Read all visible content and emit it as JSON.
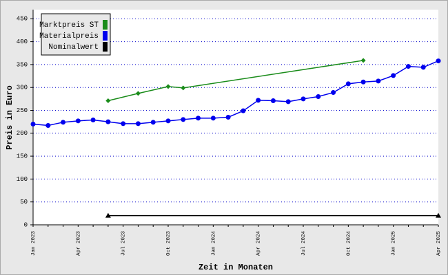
{
  "chart_data": {
    "type": "line",
    "y_label": "Preis in Euro",
    "x_label": "Zeit in Monaten",
    "x": [
      "Jan 2023",
      "Feb 2023",
      "Mar 2023",
      "Apr 2023",
      "May 2023",
      "Jun 2023",
      "Jul 2023",
      "Aug 2023",
      "Sep 2023",
      "Oct 2023",
      "Nov 2023",
      "Dec 2023",
      "Jan 2024",
      "Feb 2024",
      "Mar 2024",
      "Apr 2024",
      "May 2024",
      "Jun 2024",
      "Jul 2024",
      "Aug 2024",
      "Sep 2024",
      "Oct 2024",
      "Nov 2024",
      "Dec 2024",
      "Jan 2025",
      "Feb 2025",
      "Mar 2025",
      "Apr 2025"
    ],
    "xticks": [
      "Jan 2023",
      "Apr 2023",
      "Jul 2023",
      "Oct 2023",
      "Jan 2024",
      "Apr 2024",
      "Jul 2024",
      "Oct 2024",
      "Jan 2025",
      "Apr 2025"
    ],
    "ylim": [
      0,
      470
    ],
    "yticks": [
      0,
      50,
      100,
      150,
      200,
      250,
      300,
      350,
      400,
      450
    ],
    "grid": true,
    "legend": "upper left",
    "series": [
      {
        "name": "Marktpreis ST",
        "color": "#1a8c1a",
        "marker": "diamond",
        "x": [
          "Jun 2023",
          "Aug 2023",
          "Oct 2023",
          "Nov 2023",
          "Nov 2024"
        ],
        "values": [
          271,
          287,
          302,
          299,
          359
        ]
      },
      {
        "name": "Materialpreis",
        "color": "#0000ee",
        "marker": "circle",
        "values": [
          220,
          217,
          224,
          227,
          229,
          225,
          221,
          221,
          224,
          227,
          230,
          233,
          233,
          235,
          249,
          272,
          271,
          269,
          275,
          280,
          289,
          308,
          312,
          314,
          326,
          346,
          344,
          358
        ]
      },
      {
        "name": "Nominalwert",
        "color": "#000000",
        "marker": "triangle",
        "x": [
          "Jun 2023",
          "Apr 2025"
        ],
        "values": [
          20,
          20
        ]
      }
    ]
  }
}
